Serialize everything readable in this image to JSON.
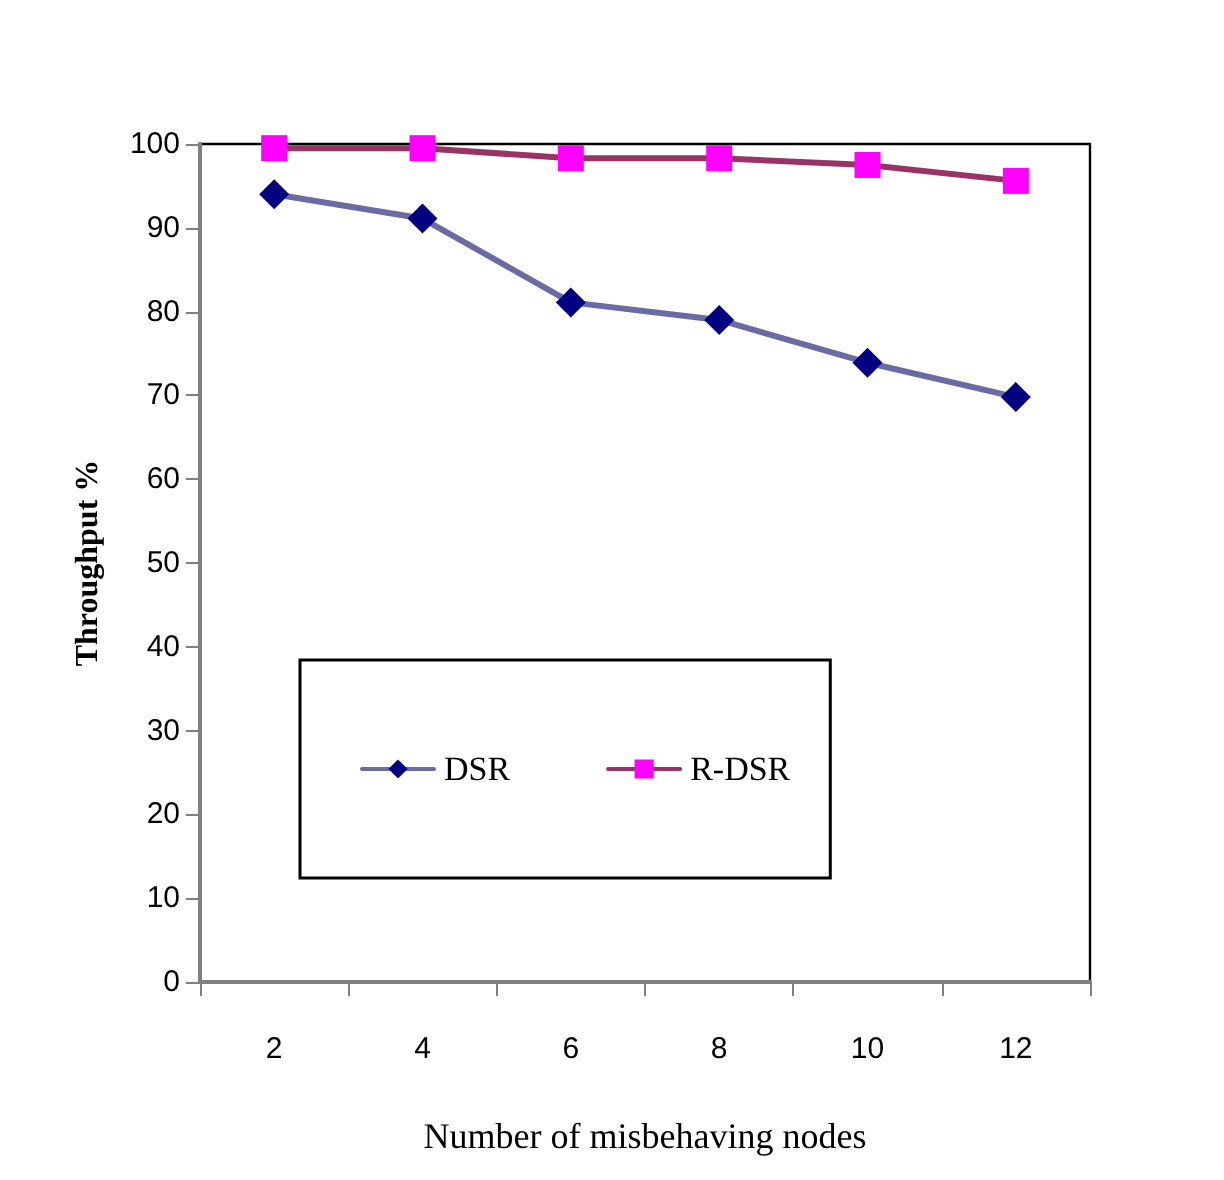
{
  "chart_data": {
    "type": "line",
    "xlabel": "Number of misbehaving nodes",
    "ylabel": "Throughput %",
    "categories": [
      "2",
      "4",
      "6",
      "8",
      "10",
      "12"
    ],
    "series": [
      {
        "name": "DSR",
        "color": "#6b6ba3",
        "colors": [
          "#000080",
          "#000080",
          "#000080",
          "#000080",
          "#000080",
          "#000080"
        ],
        "marker": "diamond",
        "values": [
          94,
          91.1,
          81.1,
          79,
          73.9,
          69.8
        ]
      },
      {
        "name": "R-DSR",
        "color": "#993366",
        "colors": [
          "#ff00ff",
          "#ff00ff",
          "#ff00ff",
          "#ff00ff",
          "#ff00ff",
          "#ff00ff"
        ],
        "marker": "square",
        "values": [
          99.5,
          99.5,
          98.3,
          98.3,
          97.5,
          95.6
        ]
      }
    ],
    "ylim": [
      0,
      100
    ],
    "yticks": [
      0,
      10,
      20,
      30,
      40,
      50,
      60,
      70,
      80,
      90,
      100
    ],
    "grid": false,
    "legend": "bottom left"
  }
}
